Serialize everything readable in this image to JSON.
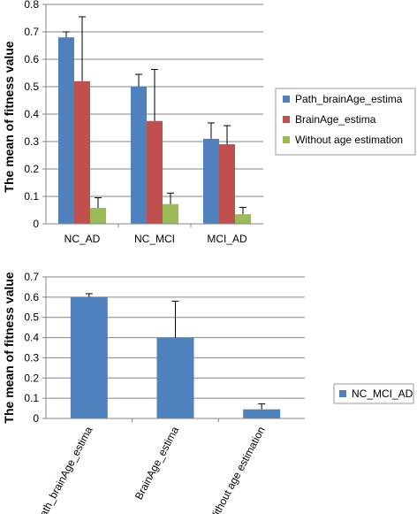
{
  "chart_data": [
    {
      "type": "bar",
      "ylabel": "The mean of fitness value",
      "ylim": [
        0,
        0.8
      ],
      "yticks": [
        "0",
        "0.1",
        "0.2",
        "0.3",
        "0.4",
        "0.5",
        "0.6",
        "0.7",
        "0.8"
      ],
      "grid": true,
      "legend_position": "right",
      "categories": [
        "NC_AD",
        "NC_MCI",
        "MCI_AD"
      ],
      "series": [
        {
          "name": "Path_brainAge_estima",
          "color": "#4F81BD",
          "values": [
            0.68,
            0.5,
            0.31
          ],
          "errors": [
            0.02,
            0.045,
            0.058
          ]
        },
        {
          "name": "BrainAge_estima",
          "color": "#C0504D",
          "values": [
            0.52,
            0.375,
            0.29
          ],
          "errors": [
            0.235,
            0.188,
            0.068
          ]
        },
        {
          "name": "Without age estimation",
          "color": "#9BBB59",
          "values": [
            0.058,
            0.072,
            0.035
          ],
          "errors": [
            0.037,
            0.04,
            0.025
          ]
        }
      ]
    },
    {
      "type": "bar",
      "ylabel": "The mean of fitness value",
      "ylim": [
        0,
        0.7
      ],
      "yticks": [
        "0",
        "0.1",
        "0.2",
        "0.3",
        "0.4",
        "0.5",
        "0.6",
        "0.7"
      ],
      "grid": true,
      "legend_position": "right",
      "categories": [
        "Path_brainAge_estima",
        "BrainAge_estima",
        "Without age estimation"
      ],
      "series": [
        {
          "name": "NC_MCI_AD",
          "color": "#4F81BD",
          "values": [
            0.6,
            0.4,
            0.045
          ],
          "errors": [
            0.017,
            0.18,
            0.027
          ]
        }
      ]
    }
  ]
}
